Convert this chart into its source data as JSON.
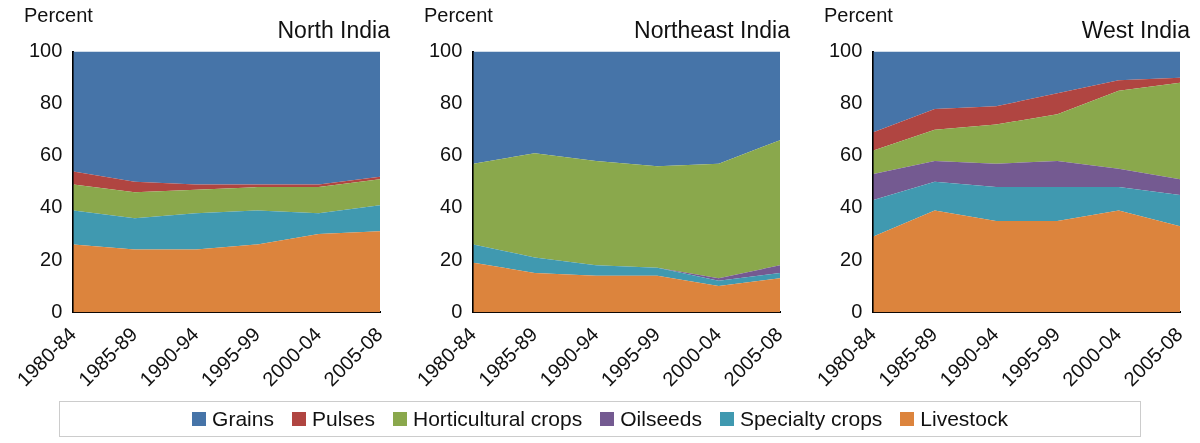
{
  "chart_data": [
    {
      "type": "area",
      "title": "North India",
      "ylabel": "Percent",
      "categories": [
        "1980-84",
        "1985-89",
        "1990-94",
        "1995-99",
        "2000-04",
        "2005-08"
      ],
      "stacked": true,
      "ylim": [
        0,
        100
      ],
      "yticks": [
        0,
        20,
        40,
        60,
        80,
        100
      ],
      "series": [
        {
          "color": "#dc843d",
          "values": [
            26,
            24,
            24,
            26,
            30,
            31
          ]
        },
        {
          "color": "#4099b0",
          "values": [
            13,
            12,
            14,
            13,
            8,
            10
          ]
        },
        {
          "color": "#8aa84c",
          "values": [
            10,
            10,
            9,
            9,
            10,
            10
          ]
        },
        {
          "color": "#b04541",
          "values": [
            5,
            4,
            2,
            1,
            1,
            1
          ]
        },
        {
          "color": "#4674a8",
          "values": [
            46,
            50,
            51,
            51,
            51,
            48
          ]
        }
      ]
    },
    {
      "type": "area",
      "title": "Northeast India",
      "ylabel": "Percent",
      "categories": [
        "1980-84",
        "1985-89",
        "1990-94",
        "1995-99",
        "2000-04",
        "2005-08"
      ],
      "stacked": true,
      "ylim": [
        0,
        100
      ],
      "yticks": [
        0,
        20,
        40,
        60,
        80,
        100
      ],
      "series": [
        {
          "color": "#dc843d",
          "values": [
            19,
            15,
            14,
            14,
            10,
            13
          ]
        },
        {
          "color": "#4099b0",
          "values": [
            7,
            6,
            4,
            3,
            2,
            2
          ]
        },
        {
          "color": "#745a91",
          "values": [
            0,
            0,
            0,
            0,
            1,
            3
          ]
        },
        {
          "color": "#8aa84c",
          "values": [
            31,
            40,
            40,
            39,
            44,
            48
          ]
        },
        {
          "color": "#4674a8",
          "values": [
            43,
            39,
            42,
            44,
            43,
            34
          ]
        }
      ]
    },
    {
      "type": "area",
      "title": "West India",
      "ylabel": "Percent",
      "categories": [
        "1980-84",
        "1985-89",
        "1990-94",
        "1995-99",
        "2000-04",
        "2005-08"
      ],
      "stacked": true,
      "ylim": [
        0,
        100
      ],
      "yticks": [
        0,
        20,
        40,
        60,
        80,
        100
      ],
      "legend": "bottom",
      "series": [
        {
          "name": "Livestock",
          "color": "#dc843d",
          "values": [
            29,
            39,
            35,
            35,
            39,
            33
          ]
        },
        {
          "name": "Specialty crops",
          "color": "#4099b0",
          "values": [
            14,
            11,
            13,
            13,
            9,
            12
          ]
        },
        {
          "name": "Oilseeds",
          "color": "#745a91",
          "values": [
            10,
            8,
            9,
            10,
            7,
            6
          ]
        },
        {
          "name": "Horticultural crops",
          "color": "#8aa84c",
          "values": [
            9,
            12,
            15,
            18,
            30,
            37
          ]
        },
        {
          "name": "Pulses",
          "color": "#b04541",
          "values": [
            7,
            8,
            7,
            8,
            4,
            2
          ]
        },
        {
          "name": "Grains",
          "color": "#4674a8",
          "values": [
            31,
            22,
            21,
            16,
            11,
            10
          ]
        }
      ]
    }
  ]
}
